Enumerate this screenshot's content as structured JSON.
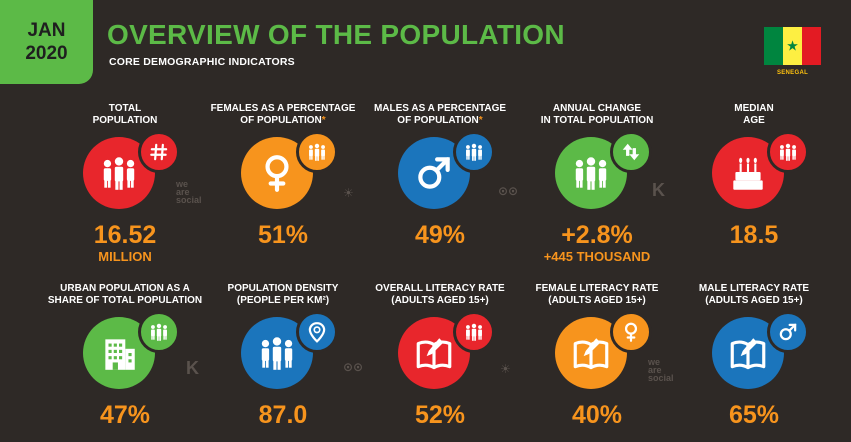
{
  "header": {
    "month": "JAN",
    "year": "2020",
    "title": "OVERVIEW OF THE POPULATION",
    "subtitle": "CORE DEMOGRAPHIC INDICATORS"
  },
  "country": {
    "name": "SENEGAL",
    "flag_colors": [
      "#00853f",
      "#fdef42",
      "#e31b23"
    ]
  },
  "colors": {
    "background": "#2e2926",
    "accent_green": "#5cba47",
    "value_orange": "#f7941d",
    "red": "#e8262c",
    "orange": "#f7941d",
    "blue": "#1b75bc",
    "green": "#5cba47"
  },
  "indicators": [
    {
      "label_line1": "TOTAL",
      "label_line2": "POPULATION",
      "value": "16.52",
      "value_sub": "MILLION",
      "color": "#e8262c",
      "icon": "people-icon",
      "badge_icon": "hash-icon"
    },
    {
      "label_line1": "FEMALES AS A PERCENTAGE",
      "label_line2": "OF POPULATION",
      "label_mark": "*",
      "value": "51%",
      "color": "#f7941d",
      "icon": "female-symbol-icon",
      "badge_icon": "people-icon"
    },
    {
      "label_line1": "MALES AS A PERCENTAGE",
      "label_line2": "OF POPULATION",
      "label_mark": "*",
      "value": "49%",
      "color": "#1b75bc",
      "icon": "male-symbol-icon",
      "badge_icon": "people-icon"
    },
    {
      "label_line1": "ANNUAL CHANGE",
      "label_line2": "IN TOTAL POPULATION",
      "value": "+2.8%",
      "value_sub": "+445 THOUSAND",
      "color": "#5cba47",
      "icon": "people-icon",
      "badge_icon": "up-down-arrows-icon"
    },
    {
      "label_line1": "MEDIAN",
      "label_line2": "AGE",
      "value": "18.5",
      "color": "#e8262c",
      "icon": "birthday-cake-icon",
      "badge_icon": "people-icon"
    },
    {
      "label_line1": "URBAN POPULATION AS A",
      "label_line2": "SHARE OF TOTAL POPULATION",
      "value": "47%",
      "color": "#5cba47",
      "icon": "building-icon",
      "badge_icon": "people-icon"
    },
    {
      "label_line1": "POPULATION DENSITY",
      "label_line2": "(PEOPLE PER KM²)",
      "value": "87.0",
      "color": "#1b75bc",
      "icon": "people-icon",
      "badge_icon": "location-pin-icon"
    },
    {
      "label_line1": "OVERALL LITERACY RATE",
      "label_line2": "(ADULTS AGED 15+)",
      "value": "52%",
      "color": "#e8262c",
      "icon": "book-pencil-icon",
      "badge_icon": "people-icon"
    },
    {
      "label_line1": "FEMALE LITERACY RATE",
      "label_line2": "(ADULTS AGED 15+)",
      "value": "40%",
      "color": "#f7941d",
      "icon": "book-pencil-icon",
      "badge_icon": "female-symbol-icon"
    },
    {
      "label_line1": "MALE LITERACY RATE",
      "label_line2": "(ADULTS AGED 15+)",
      "value": "65%",
      "color": "#1b75bc",
      "icon": "book-pencil-icon",
      "badge_icon": "male-symbol-icon"
    }
  ],
  "watermarks": {
    "we": "we",
    "are": "are",
    "social": "social",
    "kepios": "K",
    "bulb": "☀",
    "owl": "⊙⊙"
  }
}
